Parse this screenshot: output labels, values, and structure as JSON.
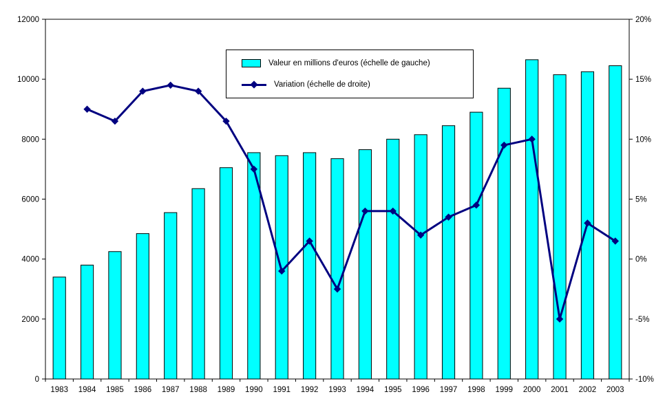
{
  "chart_data": {
    "type": "bar",
    "title": "",
    "categories": [
      "1983",
      "1984",
      "1985",
      "1986",
      "1987",
      "1988",
      "1989",
      "1990",
      "1991",
      "1992",
      "1993",
      "1994",
      "1995",
      "1996",
      "1997",
      "1998",
      "1999",
      "2000",
      "2001",
      "2002",
      "2003"
    ],
    "series": [
      {
        "name": "Valeur en millions d'euros (échelle de gauche)",
        "type": "bar",
        "axis": "left",
        "color": "#00FFFF",
        "values": [
          3400,
          3800,
          4250,
          4850,
          5550,
          6350,
          7050,
          7550,
          7450,
          7550,
          7350,
          7650,
          8000,
          8150,
          8450,
          8900,
          9700,
          10650,
          10150,
          10250,
          10450
        ]
      },
      {
        "name": "Variation (échelle de droite)",
        "type": "line",
        "axis": "right",
        "color": "#000080",
        "values": [
          null,
          12.5,
          11.5,
          14,
          14.5,
          14,
          11.5,
          7.5,
          -1,
          1.5,
          -2.5,
          4,
          4,
          2,
          3.5,
          4.5,
          9.5,
          10,
          -5,
          3,
          1.5
        ]
      }
    ],
    "left_axis": {
      "min": 0,
      "max": 12000,
      "step": 2000,
      "tick_labels": [
        "0",
        "2000",
        "4000",
        "6000",
        "8000",
        "10000",
        "12000"
      ]
    },
    "right_axis": {
      "min": -10,
      "max": 20,
      "step": 5,
      "tick_labels": [
        "-10%",
        "-5%",
        "0%",
        "5%",
        "10%",
        "15%",
        "20%"
      ]
    },
    "grid": false,
    "legend_position": "top-center",
    "xlabel": "",
    "ylabel": ""
  }
}
